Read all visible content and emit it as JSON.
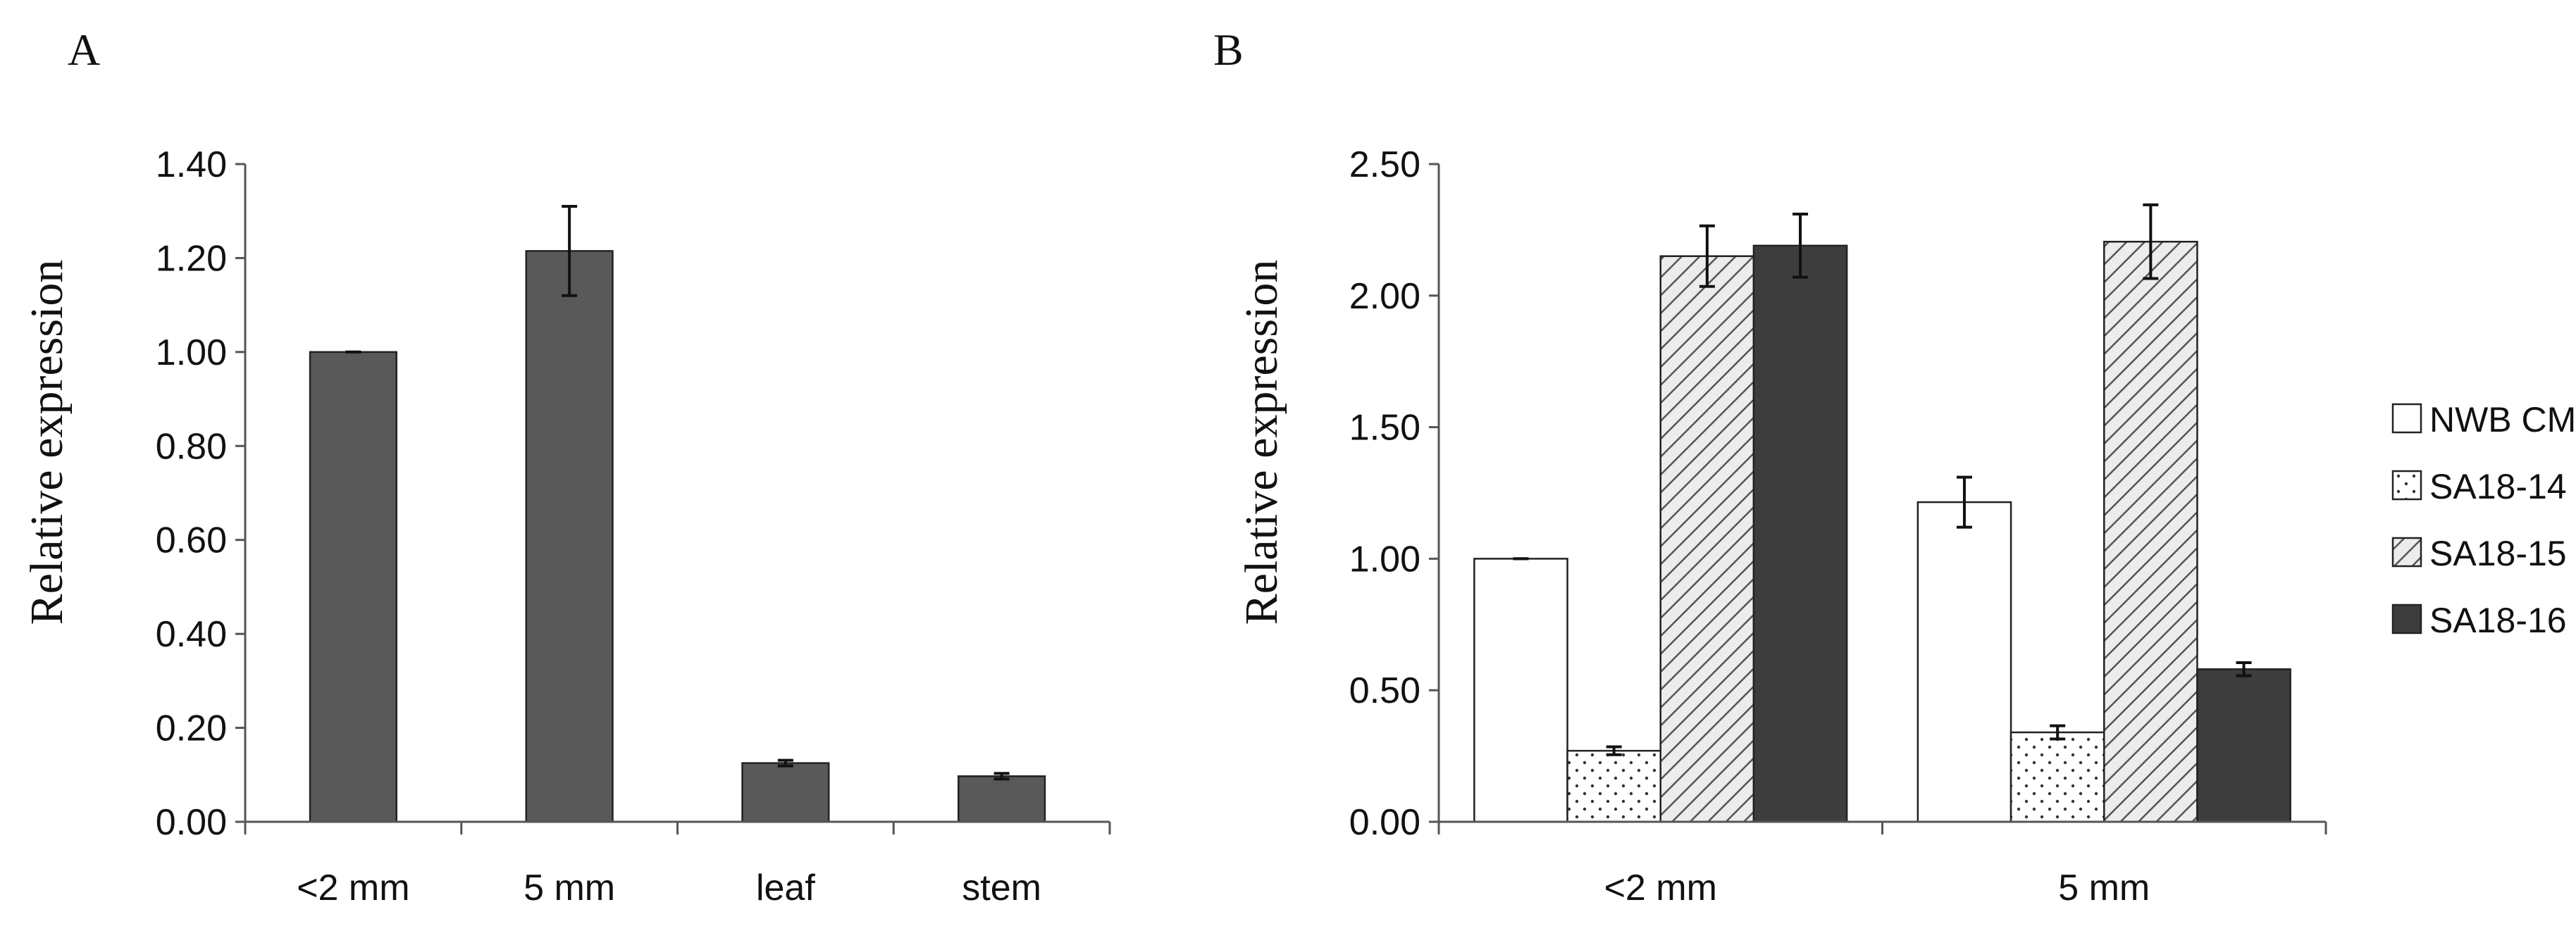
{
  "chart_data": [
    {
      "id": "A",
      "type": "bar",
      "panel_label": "A",
      "title": "",
      "xlabel": "",
      "ylabel": "Relative expression",
      "ylim": [
        0,
        1.4
      ],
      "ytick_values": [
        0,
        0.2,
        0.4,
        0.6,
        0.8,
        1.0,
        1.2,
        1.4
      ],
      "ytick_labels": [
        "0.00",
        "0.20",
        "0.40",
        "0.60",
        "0.80",
        "1.00",
        "1.20",
        "1.40"
      ],
      "categories": [
        "<2 mm",
        "5 mm",
        "leaf",
        "stem"
      ],
      "series": [
        {
          "name": "",
          "color": "#595959",
          "pattern": "solid",
          "values": [
            1.0,
            1.215,
            0.125,
            0.097
          ],
          "errors": [
            0.0,
            0.095,
            0.006,
            0.006
          ]
        }
      ]
    },
    {
      "id": "B",
      "type": "bar",
      "panel_label": "B",
      "title": "",
      "xlabel": "",
      "ylabel": "Relative expression",
      "ylim": [
        0,
        2.5
      ],
      "ytick_values": [
        0,
        0.5,
        1.0,
        1.5,
        2.0,
        2.5
      ],
      "ytick_labels": [
        "0.00",
        "0.50",
        "1.00",
        "1.50",
        "2.00",
        "2.50"
      ],
      "categories": [
        "<2 mm",
        "5 mm"
      ],
      "legend_position": "right",
      "series": [
        {
          "name": "NWB CMS",
          "color": "#ffffff",
          "pattern": "white",
          "values": [
            1.0,
            1.215
          ],
          "errors": [
            0.0,
            0.095
          ]
        },
        {
          "name": "SA18-14",
          "color": "#ffffff",
          "pattern": "dots",
          "values": [
            0.27,
            0.34
          ],
          "errors": [
            0.015,
            0.025
          ]
        },
        {
          "name": "SA18-15",
          "color": "#e0e0e0",
          "pattern": "hatch",
          "values": [
            2.15,
            2.205
          ],
          "errors": [
            0.115,
            0.14
          ]
        },
        {
          "name": "SA18-16",
          "color": "#3d3d3d",
          "pattern": "solid",
          "values": [
            2.19,
            0.58
          ],
          "errors": [
            0.12,
            0.025
          ]
        }
      ]
    }
  ]
}
